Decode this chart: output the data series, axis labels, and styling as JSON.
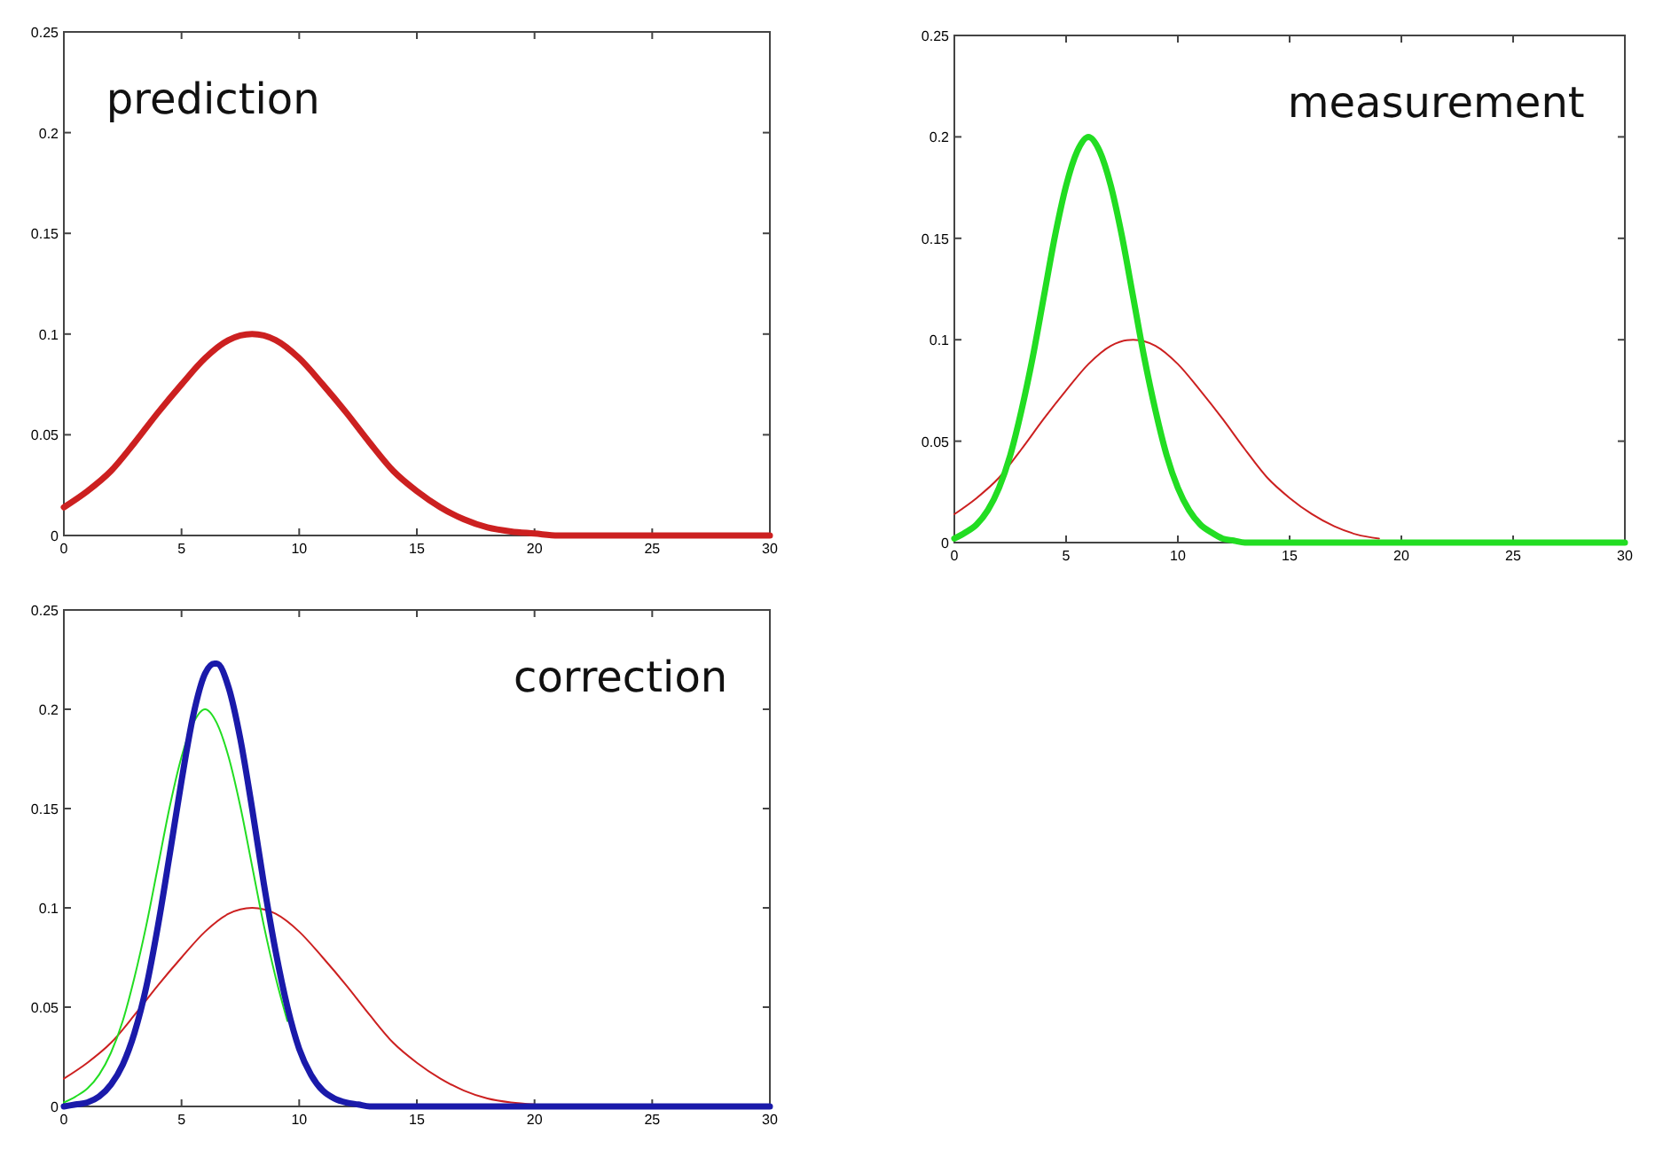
{
  "chart_data": [
    {
      "type": "line",
      "annotations": [
        "prediction"
      ],
      "xlim": [
        0,
        30
      ],
      "ylim": [
        0,
        0.25
      ],
      "xticks": [
        0,
        5,
        10,
        15,
        20,
        25,
        30
      ],
      "yticks": [
        0,
        0.05,
        0.1,
        0.15,
        0.2,
        0.25
      ],
      "series": [
        {
          "color": "#cc2020",
          "x": [
            0,
            1,
            2,
            3,
            4,
            5,
            6,
            7,
            8,
            9,
            10,
            11,
            12,
            13,
            14,
            15,
            16,
            17,
            18,
            19,
            20,
            21,
            22,
            23,
            24,
            25,
            26,
            27,
            28,
            29,
            30
          ],
          "values": [
            0.014,
            0.022,
            0.032,
            0.046,
            0.061,
            0.075,
            0.088,
            0.097,
            0.1,
            0.097,
            0.088,
            0.075,
            0.061,
            0.046,
            0.032,
            0.022,
            0.014,
            0.008,
            0.004,
            0.002,
            0.001,
            0,
            0,
            0,
            0,
            0,
            0,
            0,
            0,
            0,
            0
          ]
        }
      ]
    },
    {
      "type": "line",
      "annotations": [
        "measurement"
      ],
      "xlim": [
        0,
        30
      ],
      "ylim": [
        0,
        0.25
      ],
      "xticks": [
        0,
        5,
        10,
        15,
        20,
        25,
        30
      ],
      "yticks": [
        0,
        0.05,
        0.1,
        0.15,
        0.2,
        0.25
      ],
      "series": [
        {
          "color": "#cc2020",
          "x": [
            0,
            1,
            2,
            3,
            4,
            5,
            6,
            7,
            8,
            9,
            10,
            11,
            12,
            13,
            14,
            15,
            16,
            17,
            18,
            19
          ],
          "values": [
            0.014,
            0.022,
            0.032,
            0.046,
            0.061,
            0.075,
            0.088,
            0.097,
            0.1,
            0.097,
            0.088,
            0.075,
            0.061,
            0.046,
            0.032,
            0.022,
            0.014,
            0.008,
            0.004,
            0.002
          ]
        },
        {
          "color": "#22dd22",
          "x": [
            0,
            0.5,
            1,
            1.5,
            2,
            2.5,
            3,
            3.5,
            4,
            4.5,
            5,
            5.5,
            6,
            6.5,
            7,
            7.5,
            8,
            8.5,
            9,
            9.5,
            10,
            10.5,
            11,
            11.5,
            12,
            12.5,
            13,
            14,
            15,
            20,
            25,
            30
          ],
          "values": [
            0.002,
            0.005,
            0.009,
            0.016,
            0.027,
            0.043,
            0.065,
            0.091,
            0.121,
            0.151,
            0.176,
            0.193,
            0.2,
            0.193,
            0.176,
            0.151,
            0.121,
            0.091,
            0.065,
            0.043,
            0.027,
            0.016,
            0.009,
            0.005,
            0.002,
            0.001,
            0,
            0,
            0,
            0,
            0,
            0
          ]
        }
      ]
    },
    {
      "type": "line",
      "annotations": [
        "correction"
      ],
      "xlim": [
        0,
        30
      ],
      "ylim": [
        0,
        0.25
      ],
      "xticks": [
        0,
        5,
        10,
        15,
        20,
        25,
        30
      ],
      "yticks": [
        0,
        0.05,
        0.1,
        0.15,
        0.2,
        0.25
      ],
      "series": [
        {
          "color": "#cc2020",
          "x": [
            0,
            1,
            2,
            3,
            4,
            5,
            6,
            7,
            8,
            9,
            10,
            11,
            12,
            13,
            14,
            15,
            16,
            17,
            18,
            19,
            20
          ],
          "values": [
            0.014,
            0.022,
            0.032,
            0.046,
            0.061,
            0.075,
            0.088,
            0.097,
            0.1,
            0.097,
            0.088,
            0.075,
            0.061,
            0.046,
            0.032,
            0.022,
            0.014,
            0.008,
            0.004,
            0.002,
            0.001
          ]
        },
        {
          "color": "#22dd22",
          "x": [
            0,
            0.5,
            1,
            1.5,
            2,
            2.5,
            3,
            3.5,
            4,
            4.5,
            5,
            5.5,
            6,
            6.5,
            7,
            7.5,
            8,
            8.5,
            9,
            9.5
          ],
          "values": [
            0.002,
            0.005,
            0.009,
            0.016,
            0.027,
            0.043,
            0.065,
            0.091,
            0.121,
            0.151,
            0.176,
            0.193,
            0.2,
            0.193,
            0.176,
            0.151,
            0.121,
            0.091,
            0.065,
            0.043
          ]
        },
        {
          "color": "#1a1aaa",
          "x": [
            0,
            0.5,
            1,
            1.5,
            2,
            2.5,
            3,
            3.5,
            4,
            4.5,
            5,
            5.5,
            6,
            6.4,
            6.5,
            7,
            7.5,
            8,
            8.5,
            9,
            9.5,
            10,
            10.5,
            11,
            11.5,
            12,
            12.5,
            13,
            14,
            15,
            20,
            25,
            30
          ],
          "values": [
            0,
            0.001,
            0.002,
            0.005,
            0.011,
            0.021,
            0.037,
            0.06,
            0.091,
            0.127,
            0.164,
            0.197,
            0.218,
            0.223,
            0.223,
            0.211,
            0.185,
            0.15,
            0.112,
            0.078,
            0.05,
            0.029,
            0.016,
            0.008,
            0.004,
            0.002,
            0.001,
            0,
            0,
            0,
            0,
            0,
            0
          ]
        }
      ]
    }
  ]
}
